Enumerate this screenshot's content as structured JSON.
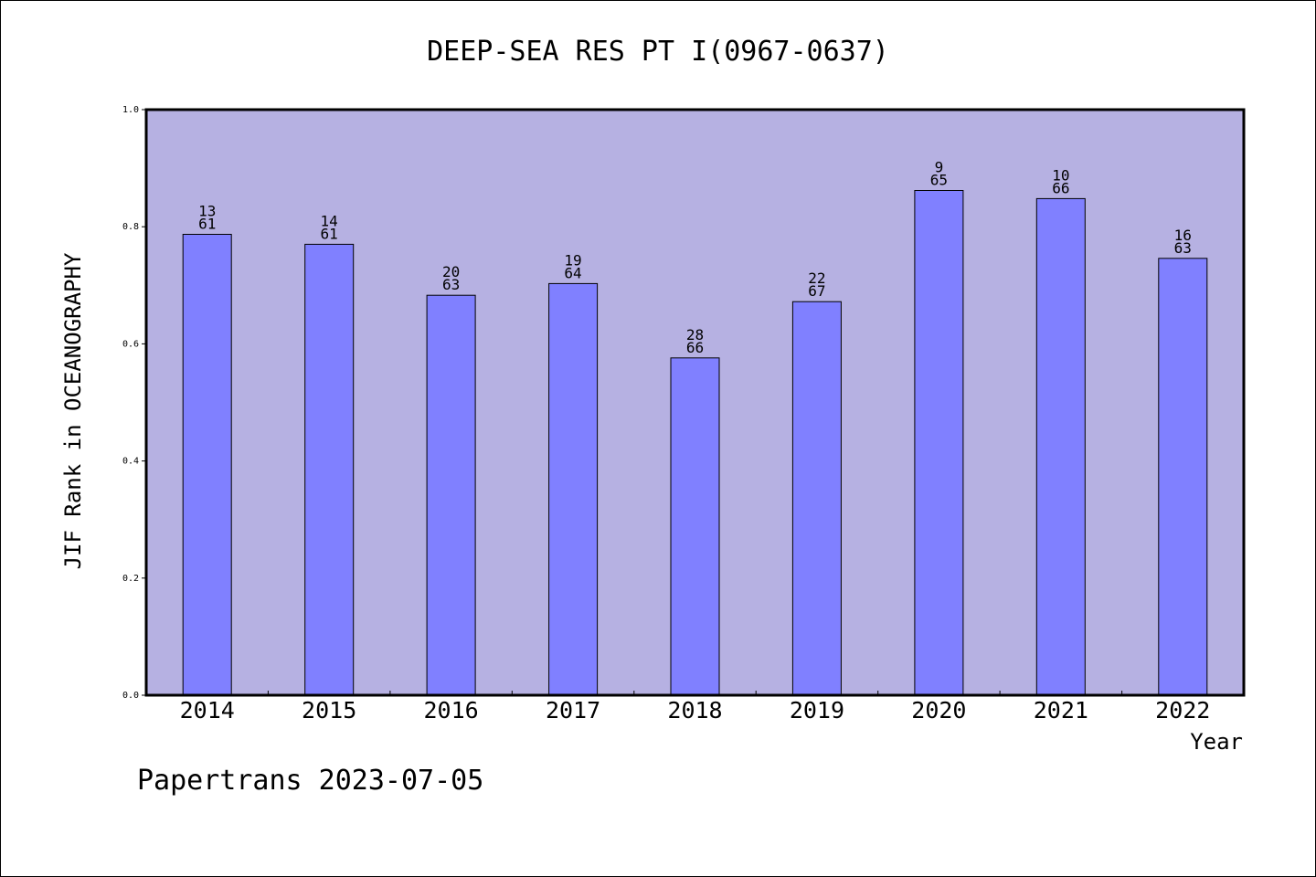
{
  "chart_data": {
    "type": "bar",
    "title": "DEEP-SEA RES PT I(0967-0637)",
    "xlabel": "Year",
    "ylabel": "JIF Rank in OCEANOGRAPHY",
    "ylim": [
      0,
      1.0
    ],
    "yticks": [
      "0.0",
      "0.2",
      "0.4",
      "0.6",
      "0.8",
      "1.0"
    ],
    "categories": [
      "2014",
      "2015",
      "2016",
      "2017",
      "2018",
      "2019",
      "2020",
      "2021",
      "2022"
    ],
    "values": [
      0.787,
      0.77,
      0.683,
      0.703,
      0.576,
      0.672,
      0.862,
      0.848,
      0.746
    ],
    "rank": [
      "13",
      "14",
      "20",
      "19",
      "28",
      "22",
      "9",
      "10",
      "16"
    ],
    "total": [
      "61",
      "61",
      "63",
      "64",
      "66",
      "67",
      "65",
      "66",
      "63"
    ],
    "grid": false,
    "colors": {
      "plot_background": "#b6b1e2",
      "bar_fill": "#8080ff",
      "bar_stroke": "#000000"
    }
  },
  "footer": {
    "text": "Papertrans 2023-07-05"
  }
}
